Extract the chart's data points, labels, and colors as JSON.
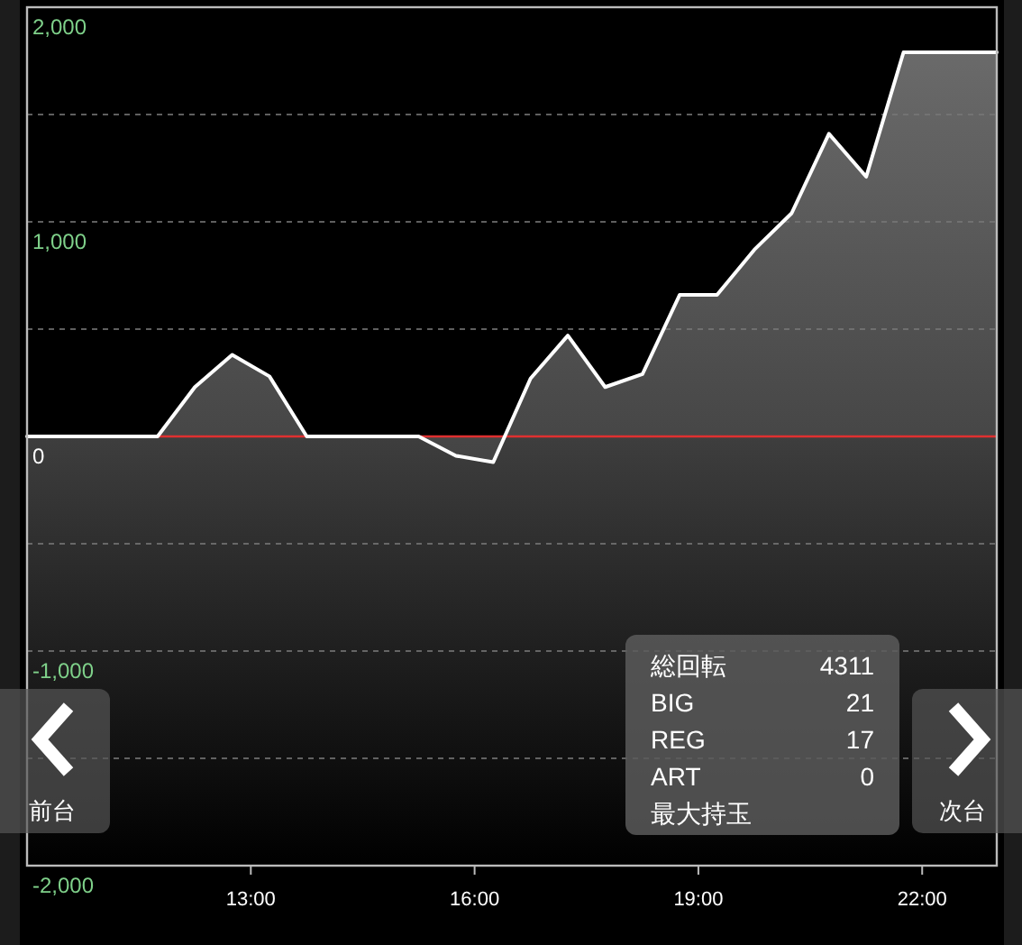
{
  "chart_data": {
    "type": "area",
    "x": [
      10,
      11.75,
      12.25,
      12.75,
      13.25,
      13.75,
      15.25,
      15.75,
      16.25,
      16.75,
      17.25,
      17.75,
      18.25,
      18.75,
      19.25,
      19.75,
      20.25,
      20.75,
      21.25,
      21.75,
      23
    ],
    "series": [
      {
        "color": "#ffffff",
        "values": [
          0,
          0,
          230,
          380,
          280,
          0,
          0,
          -90,
          -120,
          270,
          470,
          230,
          290,
          660,
          660,
          870,
          1040,
          1410,
          1210,
          1790,
          1790
        ]
      }
    ],
    "xlim": [
      10,
      23
    ],
    "xticks": [
      {
        "value": 13,
        "label": "13:00"
      },
      {
        "value": 16,
        "label": "16:00"
      },
      {
        "value": 19,
        "label": "19:00"
      },
      {
        "value": 22,
        "label": "22:00"
      }
    ],
    "ylim": [
      -2000,
      2000
    ],
    "yticks": [
      {
        "value": -2000,
        "label": "-2,000"
      },
      {
        "value": -1500,
        "label": null
      },
      {
        "value": -1000,
        "label": "-1,000"
      },
      {
        "value": -500,
        "label": null
      },
      {
        "value": 0,
        "label": "0"
      },
      {
        "value": 500,
        "label": null
      },
      {
        "value": 1000,
        "label": "1,000"
      },
      {
        "value": 1500,
        "label": null
      },
      {
        "value": 2000,
        "label": "2,000"
      }
    ],
    "grid": "y",
    "ref_lines": [
      {
        "axis": "y",
        "value": 0,
        "color": "#e03030"
      }
    ],
    "annotations": [
      "総回転",
      "4311",
      "BIG",
      "21",
      "REG",
      "17",
      "ART",
      "0",
      "最大持玉",
      "前台",
      "次台"
    ]
  }
}
